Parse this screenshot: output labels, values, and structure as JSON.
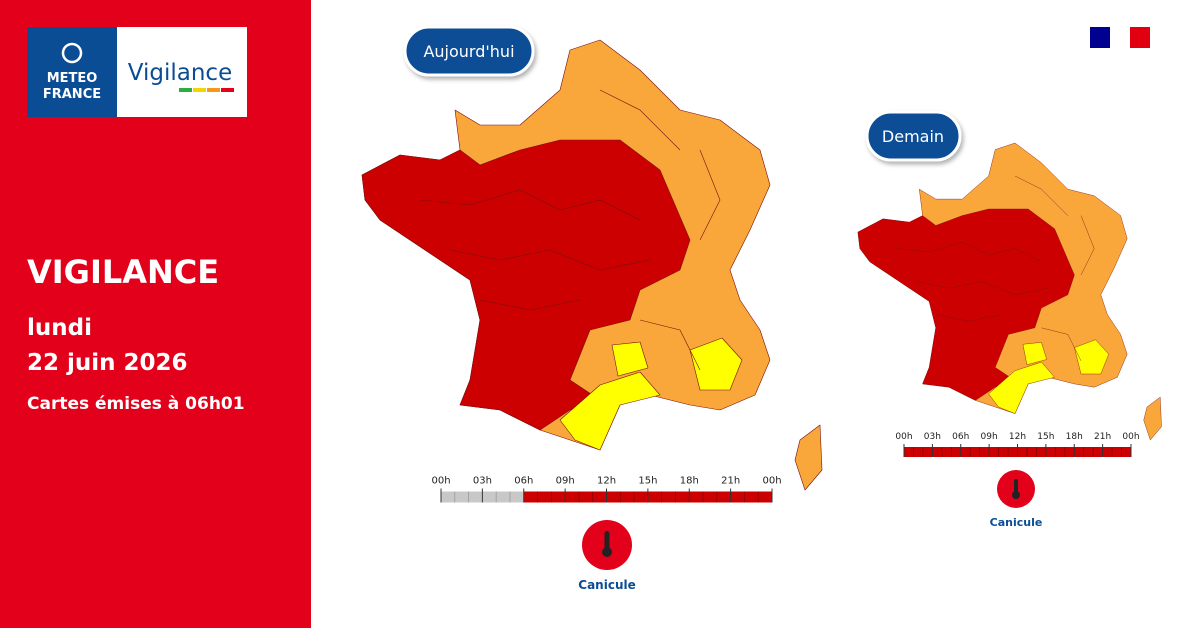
{
  "logo": {
    "line1": "METEO",
    "line2": "FRANCE",
    "product": "Vigilance"
  },
  "headline": {
    "title": "VIGILANCE",
    "day": "lundi",
    "date": "22 juin 2026",
    "issued": "Cartes émises à 06h01"
  },
  "maps": [
    {
      "label": "Aujourd'hui",
      "timeline": [
        "00h",
        "03h",
        "06h",
        "09h",
        "12h",
        "15h",
        "18h",
        "21h",
        "00h"
      ],
      "phenomenon": "Canicule"
    },
    {
      "label": "Demain",
      "timeline": [
        "00h",
        "03h",
        "06h",
        "09h",
        "12h",
        "15h",
        "18h",
        "21h",
        "00h"
      ],
      "phenomenon": "Canicule"
    }
  ]
}
